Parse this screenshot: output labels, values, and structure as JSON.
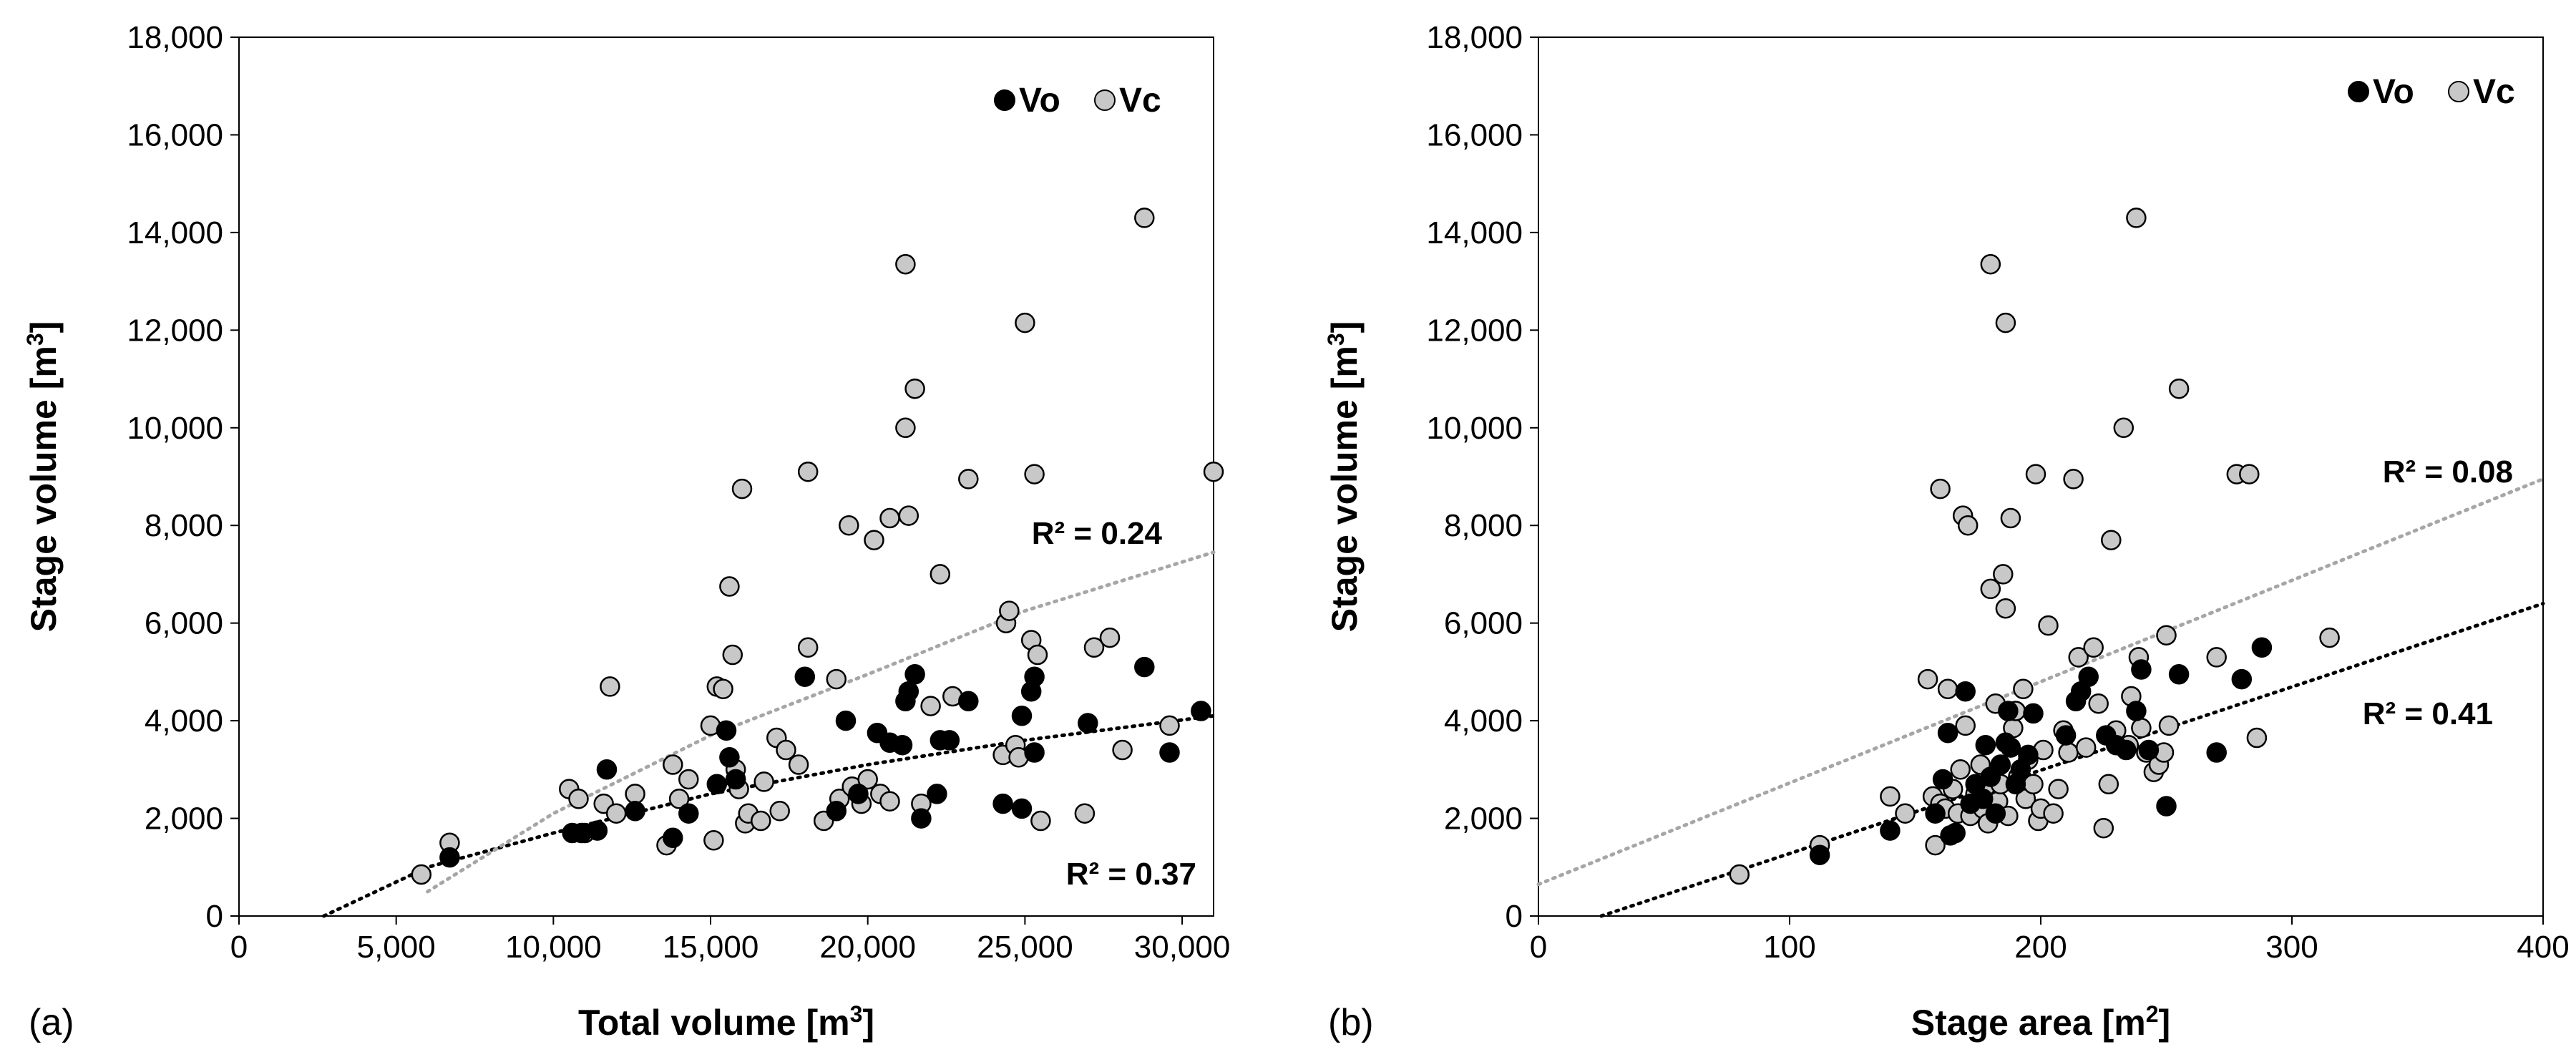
{
  "colors": {
    "vo_fill": "#000000",
    "vc_fill": "#c8c8c8",
    "vc_stroke": "#000000",
    "trend_vo": "#000000",
    "trend_vc": "#a6a6a6",
    "axis": "#000000"
  },
  "chart_data": [
    {
      "type": "scatter",
      "panel_label": "(a)",
      "xlabel": "Total volume [m³]",
      "xlabel_main": "Total volume [m",
      "xlabel_sup": "3",
      "xlabel_end": "]",
      "ylabel": "Stage volume [m³]",
      "ylabel_main": "Stage volume [m",
      "ylabel_sup": "3",
      "ylabel_end": "]",
      "xlim": [
        0,
        31000
      ],
      "ylim": [
        0,
        18000
      ],
      "xticks": [
        0,
        5000,
        10000,
        15000,
        20000,
        25000,
        30000
      ],
      "xtick_labels": [
        "0",
        "5,000",
        "10,000",
        "15,000",
        "20,000",
        "25,000",
        "30,000"
      ],
      "yticks": [
        0,
        2000,
        4000,
        6000,
        8000,
        10000,
        12000,
        14000,
        16000,
        18000
      ],
      "ytick_labels": [
        "0",
        "2,000",
        "4,000",
        "6,000",
        "8,000",
        "10,000",
        "12,000",
        "14,000",
        "16,000",
        "18,000"
      ],
      "legend_position": "top-right",
      "series": [
        {
          "name": "Vo",
          "marker": "filled-black",
          "r2_label": "R² = 0.37",
          "trend": {
            "kind": "log",
            "x_from": 2700,
            "x_to": 31000,
            "curve": [
              [
                2700,
                0
              ],
              [
                6000,
                1000
              ],
              [
                10000,
                1700
              ],
              [
                15000,
                2500
              ],
              [
                20000,
                3100
              ],
              [
                25000,
                3600
              ],
              [
                31000,
                4100
              ]
            ]
          },
          "points": [
            [
              6700,
              1200
            ],
            [
              10600,
              1700
            ],
            [
              10900,
              1700
            ],
            [
              11400,
              1750
            ],
            [
              11700,
              3000
            ],
            [
              12600,
              2150
            ],
            [
              13800,
              1600
            ],
            [
              14300,
              2100
            ],
            [
              15200,
              2700
            ],
            [
              15500,
              3800
            ],
            [
              15600,
              3250
            ],
            [
              15800,
              2800
            ],
            [
              18000,
              4900
            ],
            [
              19000,
              2150
            ],
            [
              19300,
              4000
            ],
            [
              19700,
              2500
            ],
            [
              20300,
              3750
            ],
            [
              20700,
              3550
            ],
            [
              21100,
              3500
            ],
            [
              21200,
              4400
            ],
            [
              21300,
              4600
            ],
            [
              21500,
              4950
            ],
            [
              21700,
              2000
            ],
            [
              22200,
              2500
            ],
            [
              22300,
              3600
            ],
            [
              22600,
              3600
            ],
            [
              23200,
              4400
            ],
            [
              24300,
              2300
            ],
            [
              24900,
              4100
            ],
            [
              24900,
              2200
            ],
            [
              25200,
              4600
            ],
            [
              25300,
              3350
            ],
            [
              25300,
              4900
            ],
            [
              27000,
              3950
            ],
            [
              28800,
              5100
            ],
            [
              29600,
              3350
            ],
            [
              30600,
              4200
            ]
          ]
        },
        {
          "name": "Vc",
          "marker": "open-grey",
          "r2_label": "R² = 0.24",
          "trend": {
            "kind": "log",
            "x_from": 6000,
            "x_to": 31000,
            "curve": [
              [
                6000,
                500
              ],
              [
                10000,
                2100
              ],
              [
                15000,
                3700
              ],
              [
                20000,
                4950
              ],
              [
                25000,
                6250
              ],
              [
                31000,
                7450
              ]
            ]
          },
          "points": [
            [
              5800,
              850
            ],
            [
              6700,
              1500
            ],
            [
              10500,
              2600
            ],
            [
              10800,
              2400
            ],
            [
              11000,
              1700
            ],
            [
              11600,
              2300
            ],
            [
              11800,
              4700
            ],
            [
              12000,
              2100
            ],
            [
              12600,
              2500
            ],
            [
              13600,
              1450
            ],
            [
              13800,
              3100
            ],
            [
              14000,
              2400
            ],
            [
              14300,
              2800
            ],
            [
              15000,
              3900
            ],
            [
              15100,
              1550
            ],
            [
              15200,
              4700
            ],
            [
              15400,
              4650
            ],
            [
              15600,
              6750
            ],
            [
              15700,
              5350
            ],
            [
              15800,
              3000
            ],
            [
              15900,
              2600
            ],
            [
              16000,
              8750
            ],
            [
              16100,
              1900
            ],
            [
              16200,
              2100
            ],
            [
              16600,
              1950
            ],
            [
              16700,
              2750
            ],
            [
              17100,
              3650
            ],
            [
              17200,
              2150
            ],
            [
              17400,
              3400
            ],
            [
              17800,
              3100
            ],
            [
              18100,
              9100
            ],
            [
              18100,
              5500
            ],
            [
              18600,
              1950
            ],
            [
              19000,
              4850
            ],
            [
              19100,
              2400
            ],
            [
              19400,
              8000
            ],
            [
              19500,
              2650
            ],
            [
              19800,
              2300
            ],
            [
              20000,
              2800
            ],
            [
              20200,
              7700
            ],
            [
              20400,
              2500
            ],
            [
              20700,
              2350
            ],
            [
              20700,
              8150
            ],
            [
              21200,
              13350
            ],
            [
              21200,
              10000
            ],
            [
              21300,
              8200
            ],
            [
              21500,
              10800
            ],
            [
              21700,
              2300
            ],
            [
              22000,
              4300
            ],
            [
              22300,
              7000
            ],
            [
              22700,
              4500
            ],
            [
              23200,
              8950
            ],
            [
              24300,
              3300
            ],
            [
              24400,
              6000
            ],
            [
              24500,
              6250
            ],
            [
              24700,
              3500
            ],
            [
              24800,
              3250
            ],
            [
              25000,
              12150
            ],
            [
              25200,
              5650
            ],
            [
              25300,
              9050
            ],
            [
              25400,
              5350
            ],
            [
              25500,
              1950
            ],
            [
              26900,
              2100
            ],
            [
              27200,
              5500
            ],
            [
              27700,
              5700
            ],
            [
              28100,
              3400
            ],
            [
              28800,
              14300
            ],
            [
              29600,
              3900
            ],
            [
              31000,
              9100
            ]
          ]
        }
      ]
    },
    {
      "type": "scatter",
      "panel_label": "(b)",
      "xlabel": "Stage area [m²]",
      "xlabel_main": "Stage area [m",
      "xlabel_sup": "2",
      "xlabel_end": "]",
      "ylabel": "Stage volume [m³]",
      "ylabel_main": "Stage volume [m",
      "ylabel_sup": "3",
      "ylabel_end": "]",
      "xlim": [
        0,
        400
      ],
      "ylim": [
        0,
        18000
      ],
      "xticks": [
        0,
        100,
        200,
        300,
        400
      ],
      "xtick_labels": [
        "0",
        "100",
        "200",
        "300",
        "400"
      ],
      "yticks": [
        0,
        2000,
        4000,
        6000,
        8000,
        10000,
        12000,
        14000,
        16000,
        18000
      ],
      "ytick_labels": [
        "0",
        "2,000",
        "4,000",
        "6,000",
        "8,000",
        "10,000",
        "12,000",
        "14,000",
        "16,000",
        "18,000"
      ],
      "legend_position": "top-right",
      "series": [
        {
          "name": "Vo",
          "marker": "filled-black",
          "r2_label": "R² = 0.41",
          "trend": {
            "kind": "linear",
            "x_from": 25,
            "x_to": 400,
            "curve": [
              [
                25,
                0
              ],
              [
                400,
                6400
              ]
            ]
          },
          "points": [
            [
              112,
              1250
            ],
            [
              140,
              1750
            ],
            [
              158,
              2100
            ],
            [
              161,
              2800
            ],
            [
              163,
              3750
            ],
            [
              164,
              1650
            ],
            [
              166,
              1700
            ],
            [
              170,
              4600
            ],
            [
              172,
              2300
            ],
            [
              174,
              2700
            ],
            [
              177,
              2400
            ],
            [
              178,
              3500
            ],
            [
              180,
              2850
            ],
            [
              182,
              2100
            ],
            [
              184,
              3100
            ],
            [
              186,
              3550
            ],
            [
              187,
              4200
            ],
            [
              188,
              3450
            ],
            [
              190,
              2700
            ],
            [
              192,
              3000
            ],
            [
              195,
              3300
            ],
            [
              197,
              4150
            ],
            [
              210,
              3700
            ],
            [
              214,
              4400
            ],
            [
              216,
              4600
            ],
            [
              219,
              4900
            ],
            [
              226,
              3700
            ],
            [
              230,
              3500
            ],
            [
              234,
              3400
            ],
            [
              238,
              4200
            ],
            [
              240,
              5050
            ],
            [
              243,
              3400
            ],
            [
              250,
              2250
            ],
            [
              255,
              4950
            ],
            [
              270,
              3350
            ],
            [
              280,
              4850
            ],
            [
              288,
              5500
            ]
          ]
        },
        {
          "name": "Vc",
          "marker": "open-grey",
          "r2_label": "R² = 0.08",
          "trend": {
            "kind": "linear",
            "x_from": 0,
            "x_to": 400,
            "curve": [
              [
                0,
                650
              ],
              [
                400,
                8950
              ]
            ]
          },
          "points": [
            [
              80,
              850
            ],
            [
              112,
              1450
            ],
            [
              140,
              2450
            ],
            [
              146,
              2100
            ],
            [
              155,
              4850
            ],
            [
              157,
              2450
            ],
            [
              158,
              1450
            ],
            [
              160,
              8750
            ],
            [
              160,
              2300
            ],
            [
              162,
              2200
            ],
            [
              163,
              4650
            ],
            [
              165,
              2600
            ],
            [
              167,
              2100
            ],
            [
              168,
              3000
            ],
            [
              169,
              8200
            ],
            [
              170,
              3900
            ],
            [
              171,
              8000
            ],
            [
              172,
              2050
            ],
            [
              174,
              2500
            ],
            [
              176,
              3100
            ],
            [
              177,
              2200
            ],
            [
              178,
              2650
            ],
            [
              179,
              1900
            ],
            [
              180,
              13350
            ],
            [
              180,
              6700
            ],
            [
              182,
              4350
            ],
            [
              183,
              2350
            ],
            [
              184,
              2700
            ],
            [
              185,
              7000
            ],
            [
              186,
              6300
            ],
            [
              186,
              12150
            ],
            [
              187,
              2050
            ],
            [
              188,
              8150
            ],
            [
              189,
              3850
            ],
            [
              190,
              4200
            ],
            [
              191,
              2850
            ],
            [
              193,
              4650
            ],
            [
              194,
              2400
            ],
            [
              195,
              3200
            ],
            [
              197,
              2700
            ],
            [
              198,
              9050
            ],
            [
              199,
              1950
            ],
            [
              200,
              2200
            ],
            [
              201,
              3400
            ],
            [
              203,
              5950
            ],
            [
              205,
              2100
            ],
            [
              207,
              2600
            ],
            [
              209,
              3800
            ],
            [
              211,
              3350
            ],
            [
              213,
              8950
            ],
            [
              215,
              5300
            ],
            [
              218,
              3450
            ],
            [
              221,
              5500
            ],
            [
              223,
              4350
            ],
            [
              225,
              1800
            ],
            [
              227,
              2700
            ],
            [
              228,
              7700
            ],
            [
              230,
              3800
            ],
            [
              233,
              10000
            ],
            [
              235,
              3500
            ],
            [
              236,
              4500
            ],
            [
              238,
              14300
            ],
            [
              239,
              5300
            ],
            [
              240,
              3850
            ],
            [
              242,
              3350
            ],
            [
              245,
              2950
            ],
            [
              247,
              3100
            ],
            [
              249,
              3350
            ],
            [
              250,
              5750
            ],
            [
              251,
              3900
            ],
            [
              255,
              10800
            ],
            [
              270,
              5300
            ],
            [
              278,
              9050
            ],
            [
              283,
              9050
            ],
            [
              286,
              3650
            ],
            [
              315,
              5700
            ]
          ]
        }
      ]
    }
  ]
}
